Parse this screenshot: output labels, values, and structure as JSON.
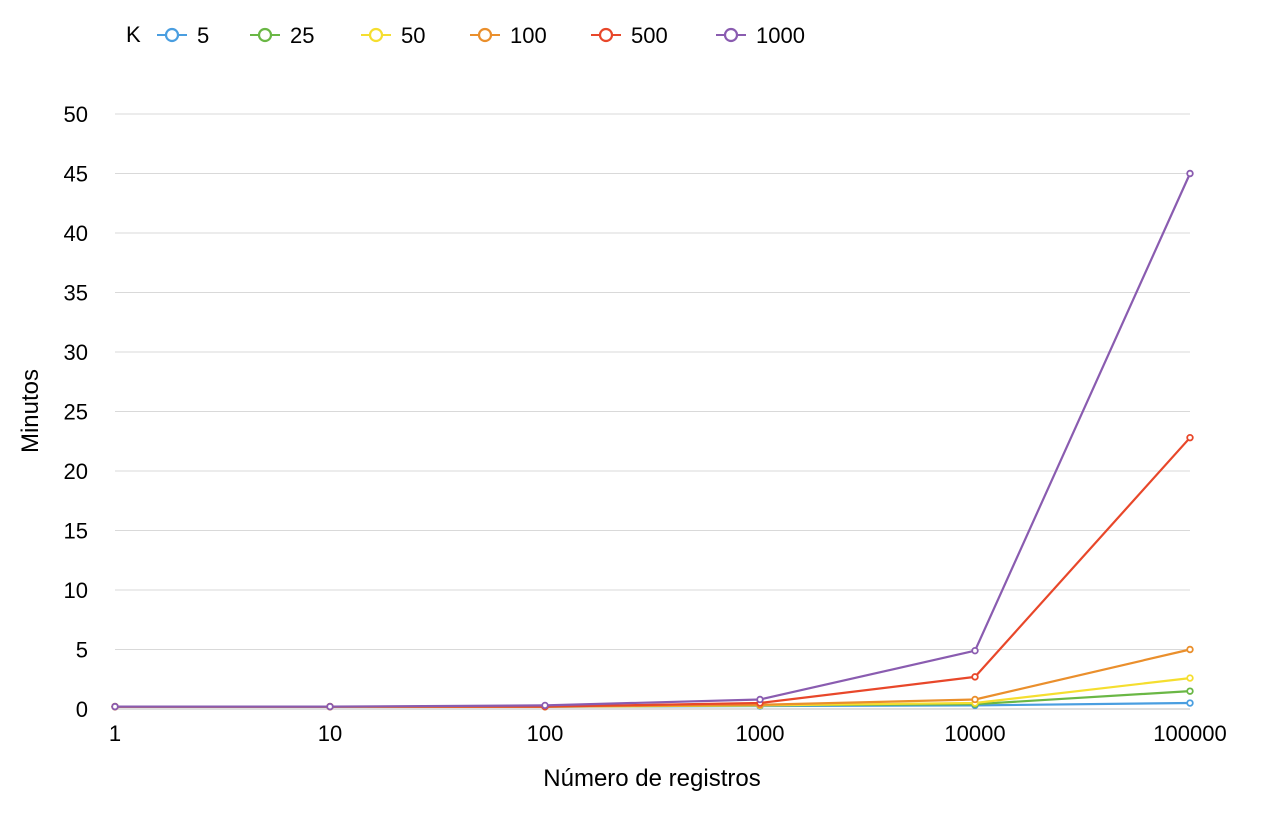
{
  "chart_data": {
    "type": "line",
    "title": "",
    "xlabel": "Número de registros",
    "ylabel": "Minutos",
    "x_scale": "log",
    "x": [
      1,
      10,
      100,
      1000,
      10000,
      100000
    ],
    "x_tick_labels": [
      "1",
      "10",
      "100",
      "1000",
      "10000",
      "100000"
    ],
    "ylim": [
      0,
      50
    ],
    "y_ticks": [
      0,
      5,
      10,
      15,
      20,
      25,
      30,
      35,
      40,
      45,
      50
    ],
    "grid": true,
    "legend_title": "K",
    "legend_position": "top-left",
    "series": [
      {
        "name": "5",
        "color": "#4a9ee0",
        "values": [
          0.2,
          0.2,
          0.2,
          0.25,
          0.3,
          0.5
        ]
      },
      {
        "name": "25",
        "color": "#6ab745",
        "values": [
          0.2,
          0.2,
          0.2,
          0.3,
          0.4,
          1.5
        ]
      },
      {
        "name": "50",
        "color": "#f5de2f",
        "values": [
          0.2,
          0.2,
          0.2,
          0.3,
          0.5,
          2.6
        ]
      },
      {
        "name": "100",
        "color": "#ea8f2c",
        "values": [
          0.2,
          0.2,
          0.2,
          0.35,
          0.8,
          5.0
        ]
      },
      {
        "name": "500",
        "color": "#e8472a",
        "values": [
          0.2,
          0.2,
          0.2,
          0.5,
          2.7,
          22.8
        ]
      },
      {
        "name": "1000",
        "color": "#8a5cb0",
        "values": [
          0.2,
          0.2,
          0.3,
          0.8,
          4.9,
          45.0
        ]
      }
    ]
  }
}
